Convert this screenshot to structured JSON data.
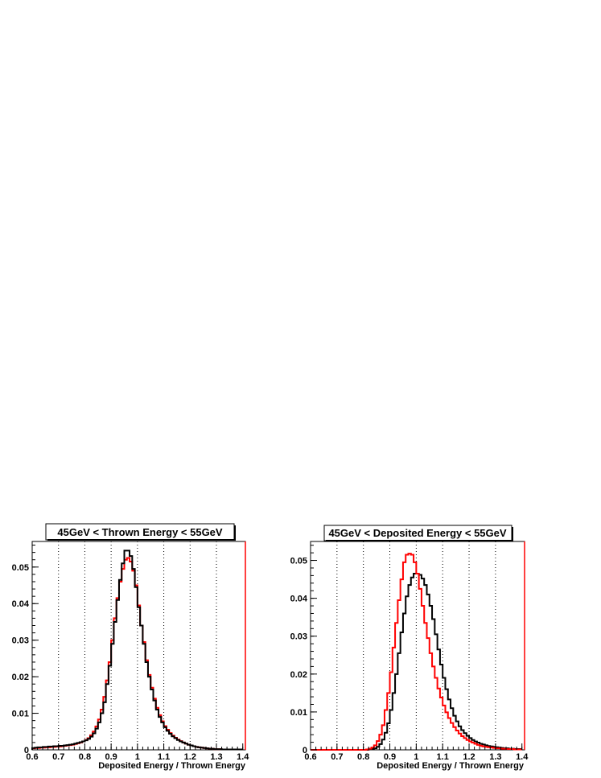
{
  "chart_data": [
    {
      "type": "histogram",
      "title": "45GeV < Thrown Energy < 55GeV",
      "xlabel": "Deposited Energy / Thrown Energy",
      "ylabel": "",
      "xlim": [
        0.6,
        1.41
      ],
      "ylim": [
        0,
        0.057
      ],
      "x_ticks": [
        "0.6",
        "0.7",
        "0.8",
        "0.9",
        "1",
        "1.1",
        "1.2",
        "1.3",
        "1.4"
      ],
      "y_ticks": [
        "0",
        "0.01",
        "0.02",
        "0.03",
        "0.04",
        "0.05"
      ],
      "grid": "vertical dotted",
      "bin_edges_start": 0.6,
      "bin_width": 0.01,
      "series": [
        {
          "color": "#000000",
          "values": [
            0.0005,
            0.0006,
            0.0007,
            0.0007,
            0.0008,
            0.0008,
            0.0009,
            0.0009,
            0.001,
            0.001,
            0.0011,
            0.0011,
            0.0012,
            0.0013,
            0.0014,
            0.0015,
            0.0017,
            0.0019,
            0.0021,
            0.0023,
            0.0026,
            0.003,
            0.0036,
            0.0045,
            0.0058,
            0.0075,
            0.01,
            0.013,
            0.018,
            0.023,
            0.029,
            0.035,
            0.041,
            0.0465,
            0.051,
            0.0545,
            0.0545,
            0.053,
            0.0495,
            0.0445,
            0.039,
            0.034,
            0.029,
            0.024,
            0.02,
            0.0165,
            0.0135,
            0.011,
            0.009,
            0.0075,
            0.0062,
            0.0052,
            0.0044,
            0.0037,
            0.0032,
            0.0027,
            0.0023,
            0.002,
            0.0017,
            0.0014,
            0.0012,
            0.001,
            0.0008,
            0.0007,
            0.0006,
            0.0005,
            0.0004,
            0.0003,
            0.0003,
            0.0002,
            0.0002,
            0.0002,
            0.0001,
            0.0001,
            0.0001,
            0.0001,
            0.0001,
            0.0001,
            0.0001,
            0.0001
          ]
        },
        {
          "color": "#ff0000",
          "values": [
            0.0004,
            0.0005,
            0.0005,
            0.0006,
            0.0006,
            0.0007,
            0.0007,
            0.0008,
            0.0008,
            0.0009,
            0.0009,
            0.001,
            0.0011,
            0.0012,
            0.0013,
            0.0014,
            0.0016,
            0.0018,
            0.002,
            0.0023,
            0.0027,
            0.0032,
            0.004,
            0.005,
            0.0064,
            0.0083,
            0.011,
            0.0145,
            0.019,
            0.024,
            0.03,
            0.036,
            0.0415,
            0.046,
            0.0495,
            0.052,
            0.0525,
            0.0515,
            0.049,
            0.045,
            0.0395,
            0.034,
            0.0295,
            0.0245,
            0.0205,
            0.017,
            0.014,
            0.0115,
            0.0095,
            0.0078,
            0.0065,
            0.0055,
            0.0046,
            0.0039,
            0.0033,
            0.0028,
            0.0024,
            0.002,
            0.0017,
            0.0014,
            0.0012,
            0.001,
            0.0008,
            0.0007,
            0.0006,
            0.0005,
            0.0004,
            0.0003,
            0.0003,
            0.0002,
            0.0002,
            0.0002,
            0.0001,
            0.0001,
            0.0001,
            0.0001,
            0.0001,
            0.0001,
            0.0001,
            0.0001
          ]
        }
      ]
    },
    {
      "type": "histogram",
      "title": "45GeV < Deposited Energy < 55GeV",
      "xlabel": "Deposited Energy / Thrown Energy",
      "ylabel": "",
      "xlim": [
        0.6,
        1.41
      ],
      "ylim": [
        0,
        0.055
      ],
      "x_ticks": [
        "0.6",
        "0.7",
        "0.8",
        "0.9",
        "1",
        "1.1",
        "1.2",
        "1.3",
        "1.4"
      ],
      "y_ticks": [
        "0",
        "0.01",
        "0.02",
        "0.03",
        "0.04",
        "0.05"
      ],
      "grid": "vertical dotted",
      "bin_edges_start": 0.6,
      "bin_width": 0.01,
      "series": [
        {
          "color": "#000000",
          "values": [
            0,
            0,
            0,
            0,
            0,
            0,
            0,
            0,
            0,
            0,
            0,
            0,
            0,
            0,
            0,
            0,
            0,
            0,
            0,
            0,
            0,
            0,
            0.0001,
            0.0002,
            0.0004,
            0.0008,
            0.0015,
            0.0027,
            0.0045,
            0.007,
            0.0105,
            0.015,
            0.02,
            0.0255,
            0.031,
            0.036,
            0.0405,
            0.0435,
            0.0455,
            0.0465,
            0.0465,
            0.0462,
            0.0452,
            0.0435,
            0.041,
            0.038,
            0.0345,
            0.0305,
            0.0265,
            0.0225,
            0.019,
            0.016,
            0.0133,
            0.011,
            0.009,
            0.0075,
            0.0062,
            0.0052,
            0.0044,
            0.0037,
            0.0031,
            0.0026,
            0.0022,
            0.0019,
            0.0016,
            0.0014,
            0.0012,
            0.001,
            0.0009,
            0.0008,
            0.0007,
            0.0006,
            0.0005,
            0.0004,
            0.0004,
            0.0003,
            0.0003,
            0.0002,
            0.0002,
            0.0002
          ]
        },
        {
          "color": "#ff0000",
          "values": [
            0,
            0,
            0,
            0,
            0,
            0,
            0,
            0,
            0,
            0,
            0,
            0,
            0,
            0,
            0,
            0,
            0,
            0,
            0,
            0,
            0,
            0.0001,
            0.0003,
            0.0006,
            0.0012,
            0.0023,
            0.004,
            0.0065,
            0.0105,
            0.015,
            0.0205,
            0.027,
            0.0335,
            0.0395,
            0.045,
            0.0495,
            0.0515,
            0.0518,
            0.0515,
            0.0495,
            0.0465,
            0.0425,
            0.038,
            0.0335,
            0.0295,
            0.0255,
            0.022,
            0.019,
            0.0162,
            0.0138,
            0.0117,
            0.0099,
            0.0084,
            0.0071,
            0.006,
            0.0051,
            0.0043,
            0.0036,
            0.0031,
            0.0026,
            0.0022,
            0.0019,
            0.0016,
            0.0013,
            0.0011,
            0.0009,
            0.0008,
            0.0007,
            0.0006,
            0.0005,
            0.0004,
            0.0004,
            0.0003,
            0.0003,
            0.0002,
            0.0002,
            0.0002,
            0.0001,
            0.0001,
            0.0001
          ]
        }
      ]
    }
  ]
}
